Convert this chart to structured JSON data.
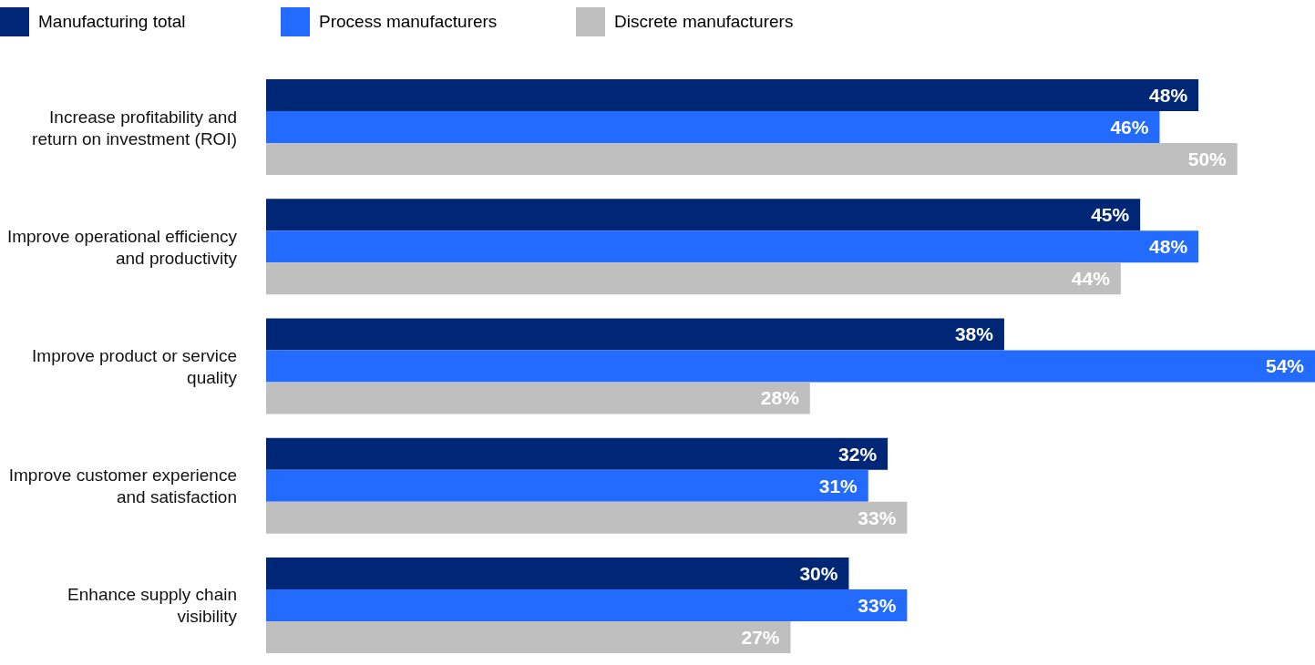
{
  "chart_data": {
    "type": "bar",
    "orientation": "horizontal",
    "legend": "top left",
    "categories": [
      "Increase profitability and return on investment (ROI)",
      "Improve operational efficiency and productivity",
      "Improve product or service quality",
      "Improve customer experience and satisfaction",
      "Enhance supply chain visibility"
    ],
    "series": [
      {
        "name": "Manufacturing total",
        "color": "#002776",
        "values": [
          48,
          45,
          38,
          32,
          30
        ],
        "value_labels": [
          "48%",
          "45%",
          "38%",
          "32%",
          "30%"
        ]
      },
      {
        "name": "Process manufacturers",
        "color": "#236bff",
        "values": [
          46,
          48,
          54,
          31,
          33
        ],
        "value_labels": [
          "46%",
          "48%",
          "54%",
          "31%",
          "33%"
        ]
      },
      {
        "name": "Discrete manufacturers",
        "color": "#bfbfbf",
        "values": [
          50,
          44,
          28,
          33,
          27
        ],
        "value_labels": [
          "50%",
          "44%",
          "28%",
          "33%",
          "27%"
        ]
      }
    ]
  }
}
